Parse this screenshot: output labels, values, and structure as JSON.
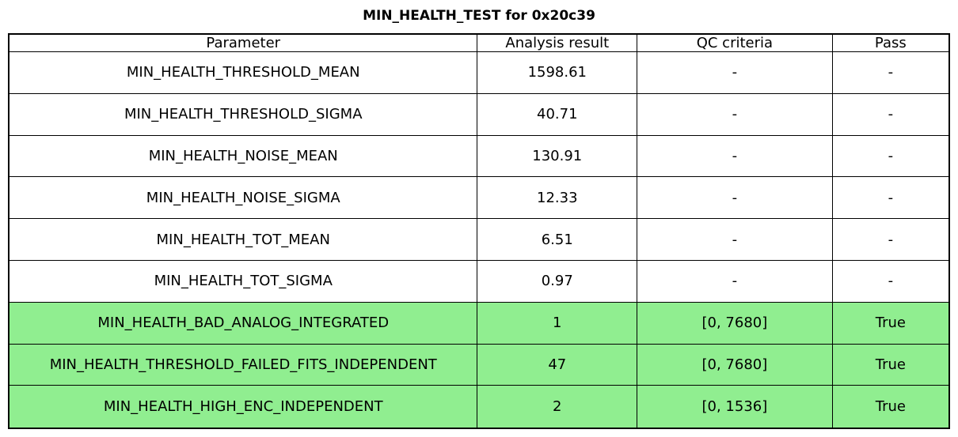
{
  "chart_data": {
    "type": "table",
    "title": "MIN_HEALTH_TEST for 0x20c39",
    "columns": [
      "Parameter",
      "Analysis result",
      "QC criteria",
      "Pass"
    ],
    "rows": [
      {
        "parameter": "MIN_HEALTH_THRESHOLD_MEAN",
        "analysis_result": "1598.61",
        "qc_criteria": "-",
        "pass": "-",
        "highlight": false
      },
      {
        "parameter": "MIN_HEALTH_THRESHOLD_SIGMA",
        "analysis_result": "40.71",
        "qc_criteria": "-",
        "pass": "-",
        "highlight": false
      },
      {
        "parameter": "MIN_HEALTH_NOISE_MEAN",
        "analysis_result": "130.91",
        "qc_criteria": "-",
        "pass": "-",
        "highlight": false
      },
      {
        "parameter": "MIN_HEALTH_NOISE_SIGMA",
        "analysis_result": "12.33",
        "qc_criteria": "-",
        "pass": "-",
        "highlight": false
      },
      {
        "parameter": "MIN_HEALTH_TOT_MEAN",
        "analysis_result": "6.51",
        "qc_criteria": "-",
        "pass": "-",
        "highlight": false
      },
      {
        "parameter": "MIN_HEALTH_TOT_SIGMA",
        "analysis_result": "0.97",
        "qc_criteria": "-",
        "pass": "-",
        "highlight": false
      },
      {
        "parameter": "MIN_HEALTH_BAD_ANALOG_INTEGRATED",
        "analysis_result": "1",
        "qc_criteria": "[0, 7680]",
        "pass": "True",
        "highlight": true
      },
      {
        "parameter": "MIN_HEALTH_THRESHOLD_FAILED_FITS_INDEPENDENT",
        "analysis_result": "47",
        "qc_criteria": "[0, 7680]",
        "pass": "True",
        "highlight": true
      },
      {
        "parameter": "MIN_HEALTH_HIGH_ENC_INDEPENDENT",
        "analysis_result": "2",
        "qc_criteria": "[0, 1536]",
        "pass": "True",
        "highlight": true
      }
    ],
    "colors": {
      "pass_row_background": "#90ee90",
      "border": "#000000",
      "text": "#000000",
      "background": "#ffffff"
    },
    "layout": {
      "highlighted_row_indices": [
        6,
        7,
        8
      ],
      "grid": "full-borders",
      "title_position": "top-center"
    }
  }
}
